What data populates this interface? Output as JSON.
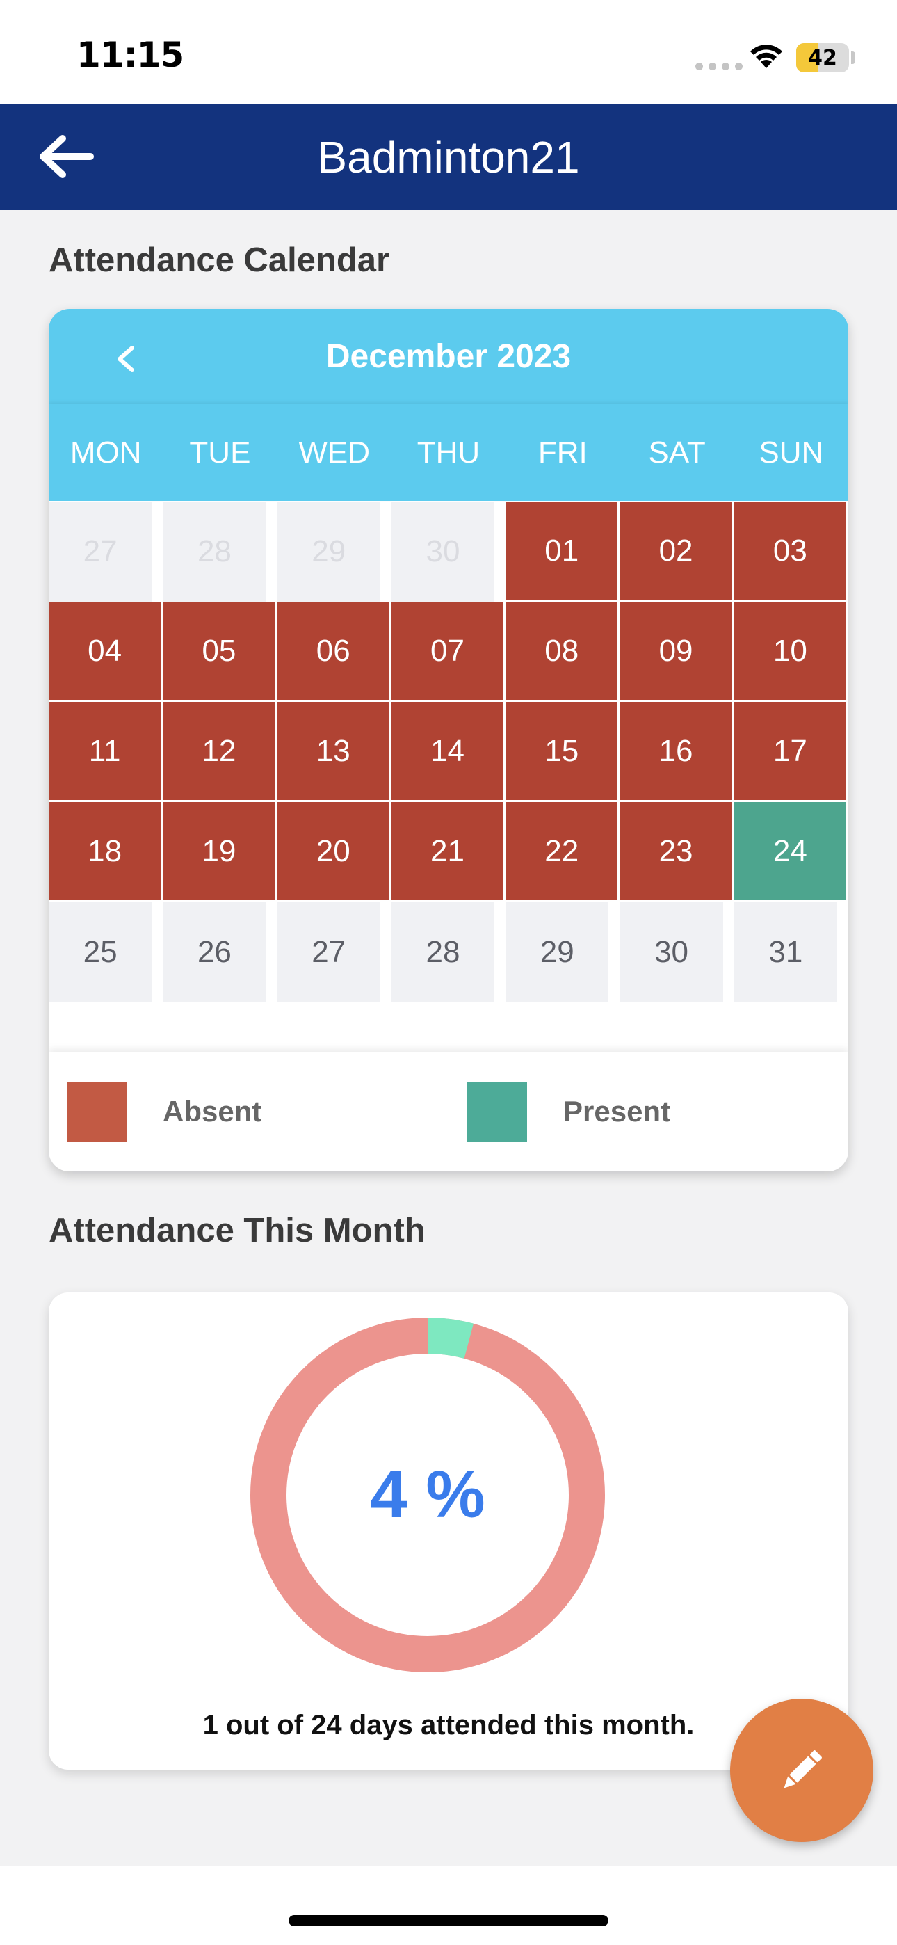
{
  "status_bar": {
    "time": "11:15",
    "battery_level": "42",
    "battery_fraction": 0.42
  },
  "header": {
    "title": "Badminton21"
  },
  "calendar_section": {
    "title": "Attendance Calendar"
  },
  "calendar": {
    "month_label": "December 2023",
    "weekdays": [
      "MON",
      "TUE",
      "WED",
      "THU",
      "FRI",
      "SAT",
      "SUN"
    ],
    "days": [
      {
        "label": "27",
        "status": "muted"
      },
      {
        "label": "28",
        "status": "muted"
      },
      {
        "label": "29",
        "status": "muted"
      },
      {
        "label": "30",
        "status": "muted"
      },
      {
        "label": "01",
        "status": "absent"
      },
      {
        "label": "02",
        "status": "absent"
      },
      {
        "label": "03",
        "status": "absent"
      },
      {
        "label": "04",
        "status": "absent"
      },
      {
        "label": "05",
        "status": "absent"
      },
      {
        "label": "06",
        "status": "absent"
      },
      {
        "label": "07",
        "status": "absent"
      },
      {
        "label": "08",
        "status": "absent"
      },
      {
        "label": "09",
        "status": "absent"
      },
      {
        "label": "10",
        "status": "absent"
      },
      {
        "label": "11",
        "status": "absent"
      },
      {
        "label": "12",
        "status": "absent"
      },
      {
        "label": "13",
        "status": "absent"
      },
      {
        "label": "14",
        "status": "absent"
      },
      {
        "label": "15",
        "status": "absent"
      },
      {
        "label": "16",
        "status": "absent"
      },
      {
        "label": "17",
        "status": "absent"
      },
      {
        "label": "18",
        "status": "absent"
      },
      {
        "label": "19",
        "status": "absent"
      },
      {
        "label": "20",
        "status": "absent"
      },
      {
        "label": "21",
        "status": "absent"
      },
      {
        "label": "22",
        "status": "absent"
      },
      {
        "label": "23",
        "status": "absent"
      },
      {
        "label": "24",
        "status": "present"
      },
      {
        "label": "25",
        "status": "future"
      },
      {
        "label": "26",
        "status": "future"
      },
      {
        "label": "27",
        "status": "future"
      },
      {
        "label": "28",
        "status": "future"
      },
      {
        "label": "29",
        "status": "future"
      },
      {
        "label": "30",
        "status": "future"
      },
      {
        "label": "31",
        "status": "future"
      }
    ],
    "legend": [
      {
        "label": "Absent",
        "color": "#c25a44"
      },
      {
        "label": "Present",
        "color": "#4dab98"
      }
    ]
  },
  "month_section": {
    "title": "Attendance This Month"
  },
  "attendance": {
    "percent_label": "4 %",
    "attended_days": 1,
    "total_days": 24,
    "summary": "1 out of 24 days attended this month.",
    "colors": {
      "attended": "#7ee8c0",
      "missed": "#ec948e",
      "value_text": "#3a7ceb"
    }
  },
  "colors": {
    "header_bg": "#13337e",
    "calendar_header": "#5ccbee",
    "absent": "#b04333",
    "present": "#4da58e",
    "fab": "#e17f45"
  },
  "icons": {
    "back": "arrow-left-icon",
    "prev_month": "chevron-left-icon",
    "fab": "pencil-icon"
  }
}
